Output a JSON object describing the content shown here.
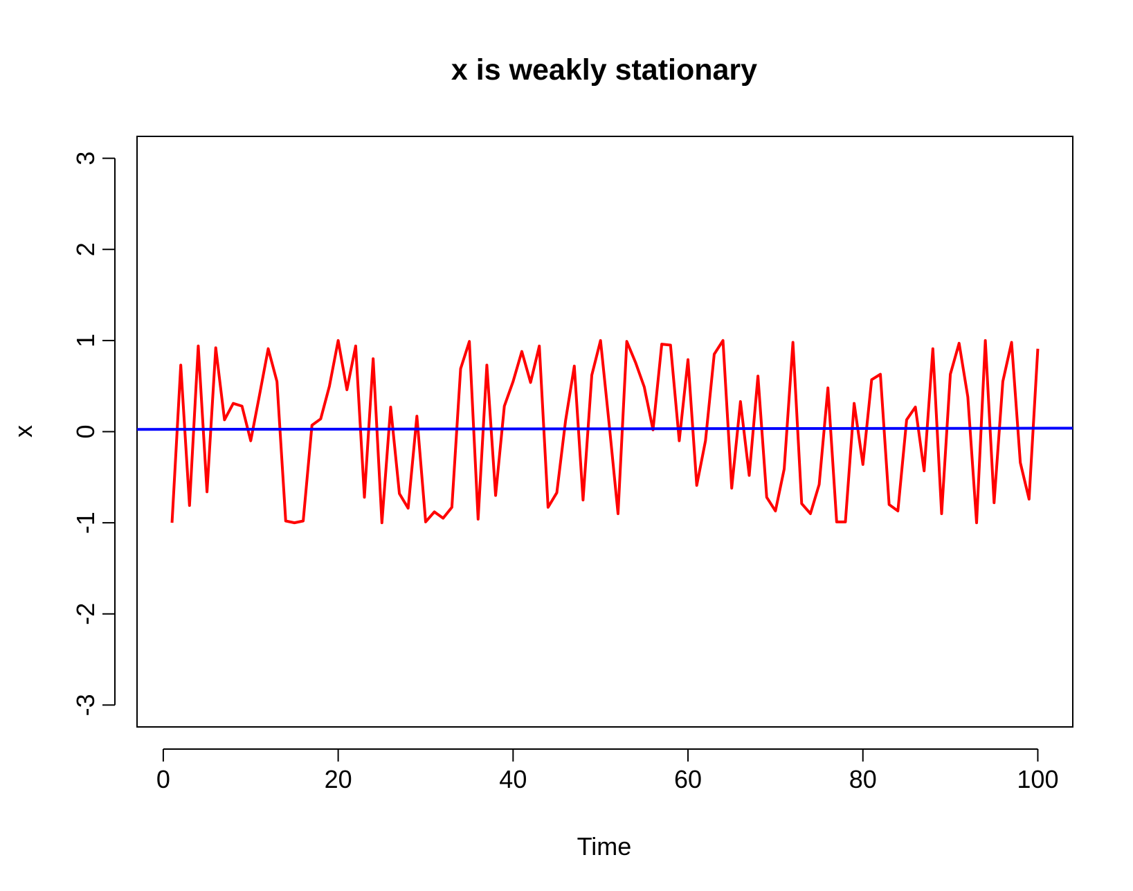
{
  "chart_data": {
    "type": "line",
    "title": "x is weakly stationary",
    "xlabel": "Time",
    "ylabel": "x",
    "xlim": [
      -3,
      104
    ],
    "ylim": [
      -3.24,
      3.24
    ],
    "x_ticks": [
      0,
      20,
      40,
      60,
      80,
      100
    ],
    "y_ticks": [
      -3,
      -2,
      -1,
      0,
      1,
      2,
      3
    ],
    "x_tick_labels": [
      "0",
      "20",
      "40",
      "60",
      "80",
      "100"
    ],
    "y_tick_labels": [
      "-3",
      "-2",
      "-1",
      "0",
      "1",
      "2",
      "3"
    ],
    "grid": false,
    "legend": "none",
    "series": [
      {
        "color": "#ff0000",
        "x": [
          1,
          2,
          3,
          4,
          5,
          6,
          7,
          8,
          9,
          10,
          11,
          12,
          13,
          14,
          15,
          16,
          17,
          18,
          19,
          20,
          21,
          22,
          23,
          24,
          25,
          26,
          27,
          28,
          29,
          30,
          31,
          32,
          33,
          34,
          35,
          36,
          37,
          38,
          39,
          40,
          41,
          42,
          43,
          44,
          45,
          46,
          47,
          48,
          49,
          50,
          51,
          52,
          53,
          54,
          55,
          56,
          57,
          58,
          59,
          60,
          61,
          62,
          63,
          64,
          65,
          66,
          67,
          68,
          69,
          70,
          71,
          72,
          73,
          74,
          75,
          76,
          77,
          78,
          79,
          80,
          81,
          82,
          83,
          84,
          85,
          86,
          87,
          88,
          89,
          90,
          91,
          92,
          93,
          94,
          95,
          96,
          97,
          98,
          99,
          100
        ],
        "values": [
          -1.0,
          0.73,
          -0.81,
          0.94,
          -0.66,
          0.92,
          0.13,
          0.31,
          0.28,
          -0.1,
          0.4,
          0.91,
          0.55,
          -0.98,
          -1.0,
          -0.98,
          0.07,
          0.14,
          0.5,
          1.0,
          0.46,
          0.94,
          -0.72,
          0.8,
          -1.0,
          0.27,
          -0.68,
          -0.84,
          0.17,
          -0.99,
          -0.88,
          -0.95,
          -0.83,
          0.69,
          0.99,
          -0.96,
          0.73,
          -0.7,
          0.28,
          0.55,
          0.88,
          0.54,
          0.94,
          -0.83,
          -0.67,
          0.12,
          0.72,
          -0.75,
          0.62,
          1.0,
          0.07,
          -0.9,
          0.99,
          0.76,
          0.49,
          0.02,
          0.96,
          0.95,
          -0.1,
          0.79,
          -0.59,
          -0.1,
          0.85,
          1.0,
          -0.62,
          0.33,
          -0.48,
          0.61,
          -0.72,
          -0.87,
          -0.41,
          0.98,
          -0.79,
          -0.9,
          -0.58,
          0.48,
          -0.99,
          -0.99,
          0.31,
          -0.36,
          0.57,
          0.63,
          -0.8,
          -0.87,
          0.13,
          0.27,
          -0.43,
          0.91,
          -0.9,
          0.63,
          0.97,
          0.38,
          -1.0,
          1.0,
          -0.78,
          0.55,
          0.98,
          -0.34,
          -0.74,
          0.91
        ]
      },
      {
        "color": "#0000ff",
        "x": [
          -3,
          104
        ],
        "values": [
          0.025,
          0.038
        ]
      }
    ]
  }
}
